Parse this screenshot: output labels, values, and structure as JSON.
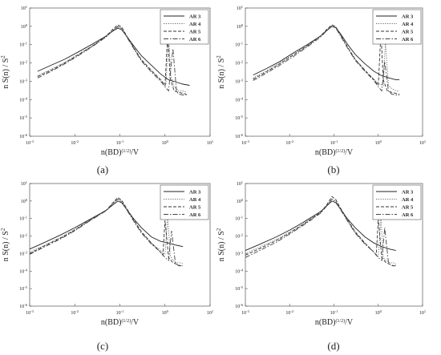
{
  "chart_data": [
    {
      "type": "line",
      "panel_label": "(a)",
      "xlabel": "n(BD)(1/2)/V",
      "ylabel": "n S(n) / S2",
      "xscale": "log",
      "yscale": "log",
      "xlim": [
        0.001,
        10
      ],
      "ylim": [
        1e-06,
        10
      ],
      "x_ticks": [
        "10-3",
        "10-2",
        "10-1",
        "100",
        "101"
      ],
      "y_ticks": [
        "10-6",
        "10-5",
        "10-4",
        "10-3",
        "10-2",
        "10-1",
        "100",
        "101"
      ],
      "legend_position": "top-right",
      "series": [
        {
          "name": "AR 3",
          "style": "solid",
          "color": "#222222",
          "x": [
            0.0015,
            0.003,
            0.006,
            0.012,
            0.025,
            0.05,
            0.07,
            0.09,
            0.11,
            0.14,
            0.2,
            0.3,
            0.5,
            0.8,
            1.2,
            1.8,
            2.5,
            3.5
          ],
          "y": [
            0.0035,
            0.0075,
            0.016,
            0.04,
            0.11,
            0.3,
            0.55,
            0.8,
            0.65,
            0.3,
            0.09,
            0.025,
            0.0075,
            0.0025,
            0.0012,
            0.0009,
            0.0007,
            0.0006
          ]
        },
        {
          "name": "AR 4",
          "style": "dotted",
          "color": "#666666",
          "x": [
            0.0015,
            0.003,
            0.006,
            0.012,
            0.025,
            0.05,
            0.07,
            0.09,
            0.11,
            0.14,
            0.2,
            0.3,
            0.5,
            0.8,
            1.05,
            1.2,
            1.35,
            1.6,
            2.0,
            2.5,
            3.0
          ],
          "y": [
            0.002,
            0.0045,
            0.011,
            0.03,
            0.09,
            0.28,
            0.6,
            1.0,
            0.8,
            0.3,
            0.07,
            0.014,
            0.0035,
            0.0012,
            0.0006,
            0.35,
            0.002,
            0.0005,
            0.0003,
            0.0003,
            0.00025
          ]
        },
        {
          "name": "AR 5",
          "style": "dashed",
          "color": "#333333",
          "x": [
            0.0015,
            0.003,
            0.006,
            0.012,
            0.025,
            0.05,
            0.07,
            0.09,
            0.11,
            0.14,
            0.2,
            0.3,
            0.5,
            0.8,
            1.0,
            1.15,
            1.3,
            1.6,
            2.0,
            2.5,
            3.0
          ],
          "y": [
            0.0018,
            0.004,
            0.01,
            0.028,
            0.085,
            0.3,
            0.7,
            1.2,
            0.9,
            0.32,
            0.075,
            0.015,
            0.004,
            0.0012,
            0.0006,
            0.4,
            0.0015,
            0.0003,
            0.00025,
            0.00022,
            0.0002
          ]
        },
        {
          "name": "AR 6",
          "style": "dashdot",
          "color": "#444444",
          "x": [
            0.0015,
            0.003,
            0.006,
            0.012,
            0.025,
            0.05,
            0.07,
            0.09,
            0.11,
            0.14,
            0.2,
            0.3,
            0.5,
            0.8,
            1.0,
            1.2,
            1.5,
            1.8,
            2.0,
            2.5,
            3.0
          ],
          "y": [
            0.0015,
            0.0035,
            0.009,
            0.025,
            0.08,
            0.27,
            0.6,
            0.95,
            0.75,
            0.28,
            0.065,
            0.013,
            0.0032,
            0.001,
            0.0005,
            0.0003,
            0.06,
            0.0003,
            0.0002,
            0.00018,
            0.00018
          ]
        }
      ]
    },
    {
      "type": "line",
      "panel_label": "(b)",
      "xlabel": "n(BD)(1/2)/V",
      "ylabel": "n S(n) / S2",
      "xscale": "log",
      "yscale": "log",
      "xlim": [
        0.001,
        10
      ],
      "ylim": [
        1e-06,
        10
      ],
      "x_ticks": [
        "10-3",
        "10-2",
        "10-1",
        "100",
        "101"
      ],
      "y_ticks": [
        "10-6",
        "10-5",
        "10-4",
        "10-3",
        "10-2",
        "10-1",
        "100",
        "101"
      ],
      "legend_position": "top-right",
      "series": [
        {
          "name": "AR 3",
          "style": "solid",
          "color": "#222222",
          "x": [
            0.0015,
            0.003,
            0.006,
            0.012,
            0.025,
            0.05,
            0.07,
            0.09,
            0.11,
            0.14,
            0.2,
            0.3,
            0.5,
            0.8,
            1.2,
            1.8,
            2.5,
            3.0
          ],
          "y": [
            0.0022,
            0.005,
            0.012,
            0.035,
            0.1,
            0.3,
            0.6,
            1.0,
            0.85,
            0.4,
            0.11,
            0.03,
            0.009,
            0.0035,
            0.002,
            0.0015,
            0.0012,
            0.0012
          ]
        },
        {
          "name": "AR 4",
          "style": "dotted",
          "color": "#666666",
          "x": [
            0.0015,
            0.003,
            0.006,
            0.012,
            0.025,
            0.05,
            0.07,
            0.09,
            0.11,
            0.14,
            0.2,
            0.3,
            0.5,
            0.8,
            1.05,
            1.3,
            1.45,
            1.7,
            2.0,
            2.5,
            3.0
          ],
          "y": [
            0.0015,
            0.0038,
            0.01,
            0.03,
            0.09,
            0.3,
            0.65,
            1.1,
            0.9,
            0.35,
            0.08,
            0.016,
            0.004,
            0.0013,
            0.0007,
            0.0006,
            0.15,
            0.0006,
            0.0004,
            0.0003,
            0.0003
          ]
        },
        {
          "name": "AR 5",
          "style": "dashed",
          "color": "#333333",
          "x": [
            0.0015,
            0.003,
            0.006,
            0.012,
            0.025,
            0.05,
            0.07,
            0.09,
            0.11,
            0.14,
            0.2,
            0.3,
            0.5,
            0.8,
            1.0,
            1.15,
            1.3,
            1.6,
            2.0,
            2.5,
            3.0
          ],
          "y": [
            0.0013,
            0.0033,
            0.009,
            0.027,
            0.085,
            0.3,
            0.7,
            1.2,
            0.95,
            0.35,
            0.08,
            0.016,
            0.004,
            0.0012,
            0.0006,
            0.5,
            0.0012,
            0.0003,
            0.00025,
            0.00022,
            0.0002
          ]
        },
        {
          "name": "AR 6",
          "style": "dashdot",
          "color": "#444444",
          "x": [
            0.0015,
            0.003,
            0.006,
            0.012,
            0.025,
            0.05,
            0.07,
            0.09,
            0.11,
            0.14,
            0.2,
            0.3,
            0.5,
            0.8,
            1.0,
            1.2,
            1.4,
            1.7,
            2.0,
            2.5,
            3.0
          ],
          "y": [
            0.0011,
            0.0028,
            0.0075,
            0.022,
            0.075,
            0.26,
            0.6,
            1.0,
            0.8,
            0.3,
            0.07,
            0.014,
            0.0035,
            0.0011,
            0.0005,
            0.0003,
            0.012,
            0.0003,
            0.0002,
            0.00018,
            0.00018
          ]
        }
      ]
    },
    {
      "type": "line",
      "panel_label": "(c)",
      "xlabel": "n(BD)(1/2)/V",
      "ylabel": "n S(n) / S2",
      "xscale": "log",
      "yscale": "log",
      "xlim": [
        0.001,
        10
      ],
      "ylim": [
        1e-06,
        10
      ],
      "x_ticks": [
        "10-3",
        "10-2",
        "10-1",
        "100",
        "101"
      ],
      "y_ticks": [
        "10-6",
        "10-5",
        "10-4",
        "10-3",
        "10-2",
        "10-1",
        "100",
        "101"
      ],
      "legend_position": "top-right",
      "series": [
        {
          "name": "AR 3",
          "style": "solid",
          "color": "#222222",
          "x": [
            0.001,
            0.002,
            0.005,
            0.01,
            0.02,
            0.05,
            0.07,
            0.09,
            0.11,
            0.14,
            0.2,
            0.3,
            0.5,
            0.8,
            1.2,
            1.8,
            2.5
          ],
          "y": [
            0.0018,
            0.004,
            0.012,
            0.03,
            0.08,
            0.3,
            0.6,
            1.0,
            0.8,
            0.35,
            0.1,
            0.03,
            0.009,
            0.005,
            0.004,
            0.003,
            0.0025
          ]
        },
        {
          "name": "AR 4",
          "style": "dotted",
          "color": "#666666",
          "x": [
            0.001,
            0.002,
            0.005,
            0.01,
            0.02,
            0.05,
            0.07,
            0.09,
            0.11,
            0.14,
            0.2,
            0.3,
            0.5,
            0.8,
            1.0,
            1.15,
            1.3,
            1.5,
            1.8,
            2.2,
            2.6
          ],
          "y": [
            0.0012,
            0.0028,
            0.009,
            0.025,
            0.075,
            0.3,
            0.7,
            1.3,
            1.0,
            0.35,
            0.08,
            0.016,
            0.004,
            0.0015,
            0.0009,
            0.15,
            0.0008,
            0.0004,
            0.0003,
            0.0003,
            0.00025
          ]
        },
        {
          "name": "AR 5",
          "style": "dashed",
          "color": "#333333",
          "x": [
            0.001,
            0.002,
            0.005,
            0.01,
            0.02,
            0.05,
            0.07,
            0.09,
            0.11,
            0.14,
            0.2,
            0.3,
            0.5,
            0.8,
            0.9,
            1.0,
            1.2,
            1.5,
            1.8,
            2.2,
            2.5
          ],
          "y": [
            0.001,
            0.0025,
            0.008,
            0.022,
            0.07,
            0.3,
            0.8,
            1.6,
            1.1,
            0.4,
            0.09,
            0.018,
            0.004,
            0.0012,
            0.0008,
            0.08,
            0.0006,
            0.0003,
            0.00025,
            0.0002,
            0.0002
          ]
        },
        {
          "name": "AR 6",
          "style": "dashdot",
          "color": "#444444",
          "x": [
            0.001,
            0.002,
            0.005,
            0.01,
            0.02,
            0.05,
            0.07,
            0.09,
            0.11,
            0.14,
            0.2,
            0.3,
            0.5,
            0.8,
            1.0,
            1.2,
            1.4,
            1.7,
            2.0,
            2.5
          ],
          "y": [
            0.0009,
            0.0022,
            0.0072,
            0.02,
            0.065,
            0.28,
            0.7,
            1.3,
            0.9,
            0.33,
            0.075,
            0.015,
            0.0035,
            0.0012,
            0.0006,
            0.0004,
            0.02,
            0.0003,
            0.0002,
            0.0002
          ]
        }
      ]
    },
    {
      "type": "line",
      "panel_label": "(d)",
      "xlabel": "n(BD)(1/2)/V",
      "ylabel": "n S(n) / S2",
      "xscale": "log",
      "yscale": "log",
      "xlim": [
        0.001,
        10
      ],
      "ylim": [
        1e-06,
        10
      ],
      "x_ticks": [
        "10-3",
        "10-2",
        "10-1",
        "100",
        "101"
      ],
      "y_ticks": [
        "10-6",
        "10-5",
        "10-4",
        "10-3",
        "10-2",
        "10-1",
        "100",
        "101"
      ],
      "legend_position": "top-right",
      "series": [
        {
          "name": "AR 3",
          "style": "solid",
          "color": "#222222",
          "x": [
            0.001,
            0.002,
            0.005,
            0.01,
            0.02,
            0.05,
            0.07,
            0.09,
            0.11,
            0.14,
            0.2,
            0.3,
            0.5,
            0.8,
            1.2,
            1.8,
            2.5
          ],
          "y": [
            0.0015,
            0.0032,
            0.009,
            0.022,
            0.06,
            0.25,
            0.55,
            1.0,
            0.8,
            0.35,
            0.1,
            0.03,
            0.009,
            0.004,
            0.0025,
            0.0018,
            0.0015
          ]
        },
        {
          "name": "AR 4",
          "style": "dotted",
          "color": "#666666",
          "x": [
            0.001,
            0.002,
            0.005,
            0.01,
            0.02,
            0.05,
            0.07,
            0.09,
            0.11,
            0.14,
            0.2,
            0.3,
            0.5,
            0.8,
            1.0,
            1.15,
            1.3,
            1.5,
            1.8,
            2.2,
            2.5
          ],
          "y": [
            0.001,
            0.0022,
            0.0065,
            0.017,
            0.05,
            0.23,
            0.6,
            1.3,
            1.0,
            0.35,
            0.08,
            0.016,
            0.004,
            0.0012,
            0.0007,
            0.12,
            0.0006,
            0.0004,
            0.0003,
            0.0003,
            0.00025
          ]
        },
        {
          "name": "AR 5",
          "style": "dashed",
          "color": "#333333",
          "x": [
            0.001,
            0.002,
            0.005,
            0.01,
            0.02,
            0.05,
            0.07,
            0.09,
            0.11,
            0.14,
            0.2,
            0.3,
            0.5,
            0.8,
            0.9,
            1.0,
            1.2,
            1.5,
            1.8,
            2.2,
            2.5
          ],
          "y": [
            0.0008,
            0.0018,
            0.0055,
            0.015,
            0.045,
            0.22,
            0.65,
            1.8,
            1.2,
            0.4,
            0.09,
            0.018,
            0.004,
            0.0012,
            0.0008,
            0.1,
            0.0006,
            0.0003,
            0.00025,
            0.0002,
            0.0002
          ]
        },
        {
          "name": "AR 6",
          "style": "dashdot",
          "color": "#444444",
          "x": [
            0.001,
            0.002,
            0.005,
            0.01,
            0.02,
            0.05,
            0.07,
            0.09,
            0.11,
            0.14,
            0.2,
            0.3,
            0.5,
            0.8,
            1.0,
            1.2,
            1.4,
            1.7,
            2.0,
            2.5
          ],
          "y": [
            0.0006,
            0.0014,
            0.0045,
            0.013,
            0.04,
            0.2,
            0.55,
            1.3,
            0.9,
            0.33,
            0.075,
            0.015,
            0.0035,
            0.0012,
            0.0006,
            0.0004,
            0.03,
            0.0003,
            0.0002,
            0.0002
          ]
        }
      ]
    }
  ]
}
